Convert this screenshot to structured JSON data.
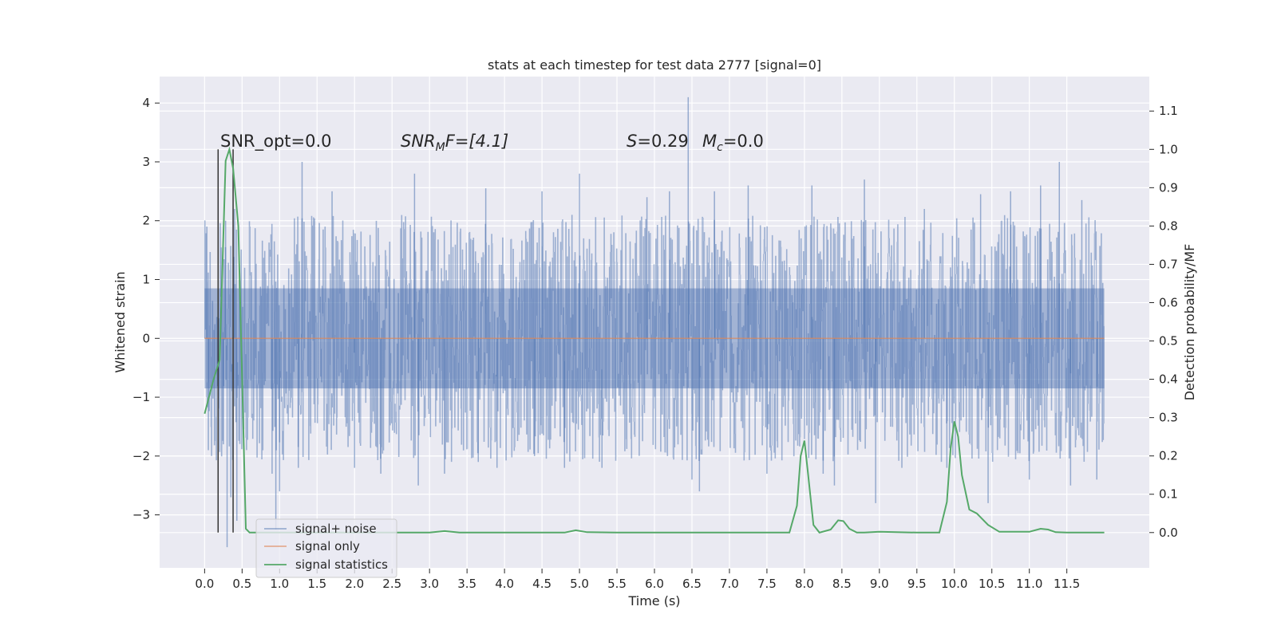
{
  "chart_data": {
    "type": "line",
    "title": "stats at each timestep for test data 2777 [signal=0]",
    "xlabel": "Time (s)",
    "ylabel": "Whitened strain",
    "y2label": "Detection probability/MF",
    "xlim": [
      -0.6,
      12.6
    ],
    "ylim": [
      -3.9,
      4.45
    ],
    "y2lim": [
      -0.092,
      1.19
    ],
    "x_ticks": [
      "0.0",
      "0.5",
      "1.0",
      "1.5",
      "2.0",
      "2.5",
      "3.0",
      "3.5",
      "4.0",
      "4.5",
      "5.0",
      "5.5",
      "6.0",
      "6.5",
      "7.0",
      "7.5",
      "8.0",
      "8.5",
      "9.0",
      "9.5",
      "10.0",
      "10.5",
      "11.0",
      "11.5"
    ],
    "y_ticks": [
      "4",
      "3",
      "2",
      "1",
      "0",
      "−1",
      "−2",
      "−3"
    ],
    "y2_ticks": [
      "1.1",
      "1.0",
      "0.9",
      "0.8",
      "0.7",
      "0.6",
      "0.5",
      "0.4",
      "0.3",
      "0.2",
      "0.1",
      "0.0"
    ],
    "grid": true,
    "legend_position": "lower-left",
    "colors": {
      "background": "#eaeaf2",
      "grid": "#ffffff",
      "noise": "#4c72b0",
      "signal": "#dd8452",
      "statistics": "#55a868",
      "marker": "#333333"
    },
    "annotations": {
      "snr_opt": "SNR_opt=0.0",
      "snr_mf_prefix": "SNR",
      "snr_mf_sub": "M",
      "snr_mf_suffix": "F=[4.1]",
      "s_symbol": "S",
      "s_value": "=0.29",
      "mc_symbol": "M",
      "mc_sub": "c",
      "mc_value": "=0.0"
    },
    "series": [
      {
        "name": "signal+ noise",
        "x_range": [
          0.0,
          12.0
        ],
        "envelope_typical": [
          -1.4,
          1.4
        ],
        "envelope_dense": [
          -0.85,
          0.85
        ],
        "peaks": [
          [
            0.03,
            1.9
          ],
          [
            0.05,
            -1.9
          ],
          [
            0.25,
            -1.8
          ],
          [
            0.28,
            2.0
          ],
          [
            0.3,
            -3.55
          ],
          [
            0.35,
            -2.7
          ],
          [
            0.4,
            2.2
          ],
          [
            0.43,
            -3.1
          ],
          [
            0.9,
            -2.3
          ],
          [
            0.95,
            -3.25
          ],
          [
            1.0,
            -2.6
          ],
          [
            1.3,
            3.0
          ],
          [
            1.25,
            -2.2
          ],
          [
            1.7,
            2.5
          ],
          [
            2.0,
            -2.2
          ],
          [
            2.35,
            -2.3
          ],
          [
            2.8,
            2.8
          ],
          [
            2.85,
            -2.5
          ],
          [
            3.2,
            -2.3
          ],
          [
            3.65,
            -2.1
          ],
          [
            3.75,
            2.55
          ],
          [
            3.9,
            -2.2
          ],
          [
            4.4,
            -2.0
          ],
          [
            4.5,
            2.5
          ],
          [
            4.8,
            -2.2
          ],
          [
            4.9,
            2.1
          ],
          [
            5.0,
            2.8
          ],
          [
            5.3,
            -2.2
          ],
          [
            5.9,
            2.4
          ],
          [
            6.2,
            2.5
          ],
          [
            6.45,
            4.1
          ],
          [
            6.5,
            -2.4
          ],
          [
            6.6,
            -2.6
          ],
          [
            6.8,
            2.5
          ],
          [
            7.25,
            2.6
          ],
          [
            7.5,
            -2.3
          ],
          [
            8.1,
            2.6
          ],
          [
            8.25,
            -2.3
          ],
          [
            8.4,
            -2.5
          ],
          [
            8.8,
            2.7
          ],
          [
            8.95,
            -2.8
          ],
          [
            9.3,
            -2.2
          ],
          [
            9.6,
            2.2
          ],
          [
            9.9,
            -2.2
          ],
          [
            10.35,
            2.45
          ],
          [
            10.45,
            -2.8
          ],
          [
            10.75,
            2.5
          ],
          [
            11.0,
            -2.4
          ],
          [
            11.15,
            2.6
          ],
          [
            11.4,
            3.0
          ],
          [
            11.55,
            -2.5
          ],
          [
            11.7,
            2.35
          ],
          [
            11.9,
            -2.4
          ]
        ]
      },
      {
        "name": "signal only",
        "x": [
          0.0,
          12.0
        ],
        "y": [
          0.0,
          0.0
        ]
      },
      {
        "name": "signal statistics",
        "axis": "right",
        "x": [
          0.0,
          0.12,
          0.2,
          0.28,
          0.33,
          0.38,
          0.45,
          0.55,
          0.6,
          0.7,
          1.0,
          2.0,
          3.0,
          3.2,
          3.4,
          4.0,
          4.8,
          4.95,
          5.1,
          5.5,
          6.0,
          6.5,
          7.0,
          7.5,
          7.8,
          7.9,
          7.95,
          8.0,
          8.05,
          8.12,
          8.2,
          8.35,
          8.45,
          8.52,
          8.6,
          8.7,
          8.8,
          9.0,
          9.5,
          9.8,
          9.9,
          9.95,
          10.0,
          10.05,
          10.1,
          10.2,
          10.3,
          10.45,
          10.6,
          11.0,
          11.15,
          11.25,
          11.35,
          11.5,
          12.0
        ],
        "y": [
          0.31,
          0.4,
          0.45,
          0.97,
          1.0,
          0.95,
          0.8,
          0.01,
          0.0,
          0.0,
          0.0,
          0.0,
          0.0,
          0.004,
          0.0,
          0.0,
          0.0,
          0.006,
          0.001,
          0.0,
          0.0,
          0.0,
          0.0,
          0.0,
          0.0,
          0.07,
          0.2,
          0.24,
          0.15,
          0.02,
          0.0,
          0.008,
          0.032,
          0.03,
          0.01,
          0.0,
          0.0,
          0.002,
          0.0,
          0.0,
          0.08,
          0.22,
          0.29,
          0.25,
          0.15,
          0.06,
          0.05,
          0.02,
          0.002,
          0.002,
          0.01,
          0.008,
          0.001,
          0.0,
          0.0
        ]
      }
    ],
    "marker_lines_x": [
      0.18,
      0.38
    ]
  }
}
